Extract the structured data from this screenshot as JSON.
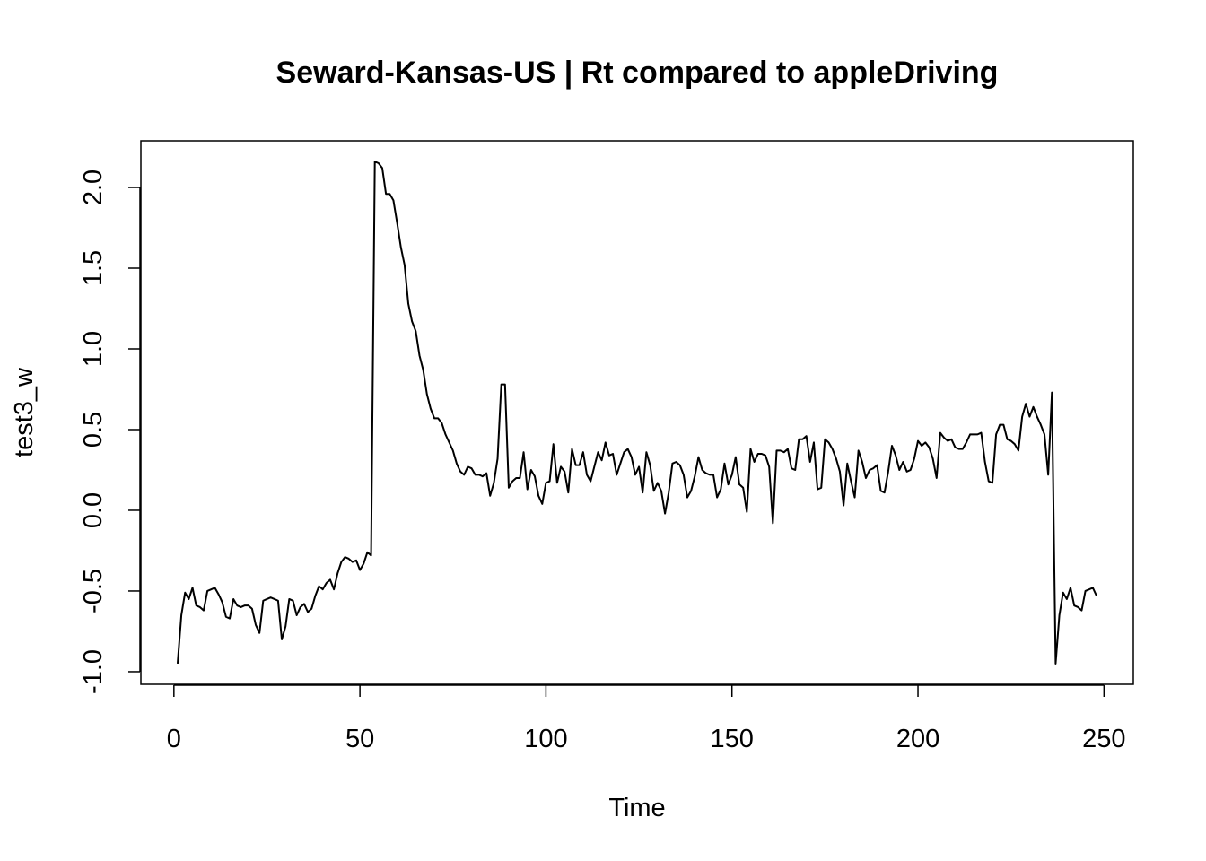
{
  "chart_data": {
    "type": "line",
    "title": "Seward-Kansas-US | Rt compared to appleDriving",
    "x_label": "Time",
    "y_label": "test3_w",
    "x": [
      1,
      2,
      3,
      4,
      5,
      6,
      7,
      8,
      9,
      10,
      11,
      12,
      13,
      14,
      15,
      16,
      17,
      18,
      19,
      20,
      21,
      22,
      23,
      24,
      25,
      26,
      27,
      28,
      29,
      30,
      31,
      32,
      33,
      34,
      35,
      36,
      37,
      38,
      39,
      40,
      41,
      42,
      43,
      44,
      45,
      46,
      47,
      48,
      49,
      50,
      51,
      52,
      53,
      54,
      55,
      56,
      57,
      58,
      59,
      60,
      61,
      62,
      63,
      64,
      65,
      66,
      67,
      68,
      69,
      70,
      71,
      72,
      73,
      74,
      75,
      76,
      77,
      78,
      79,
      80,
      81,
      82,
      83,
      84,
      85,
      86,
      87,
      88,
      89,
      90,
      91,
      92,
      93,
      94,
      95,
      96,
      97,
      98,
      99,
      100,
      101,
      102,
      103,
      104,
      105,
      106,
      107,
      108,
      109,
      110,
      111,
      112,
      113,
      114,
      115,
      116,
      117,
      118,
      119,
      120,
      121,
      122,
      123,
      124,
      125,
      126,
      127,
      128,
      129,
      130,
      131,
      132,
      133,
      134,
      135,
      136,
      137,
      138,
      139,
      140,
      141,
      142,
      143,
      144,
      145,
      146,
      147,
      148,
      149,
      150,
      151,
      152,
      153,
      154,
      155,
      156,
      157,
      158,
      159,
      160,
      161,
      162,
      163,
      164,
      165,
      166,
      167,
      168,
      169,
      170,
      171,
      172,
      173,
      174,
      175,
      176,
      177,
      178,
      179,
      180,
      181,
      182,
      183,
      184,
      185,
      186,
      187,
      188,
      189,
      190,
      191,
      192,
      193,
      194,
      195,
      196,
      197,
      198,
      199,
      200,
      201,
      202,
      203,
      204,
      205,
      206,
      207,
      208,
      209,
      210,
      211,
      212,
      213,
      214,
      215,
      216,
      217,
      218,
      219,
      220,
      221,
      222,
      223,
      224,
      225,
      226,
      227,
      228,
      229,
      230,
      231,
      232,
      233,
      234,
      235,
      236,
      237,
      238,
      239,
      240,
      241,
      242,
      243,
      244,
      245,
      246,
      247,
      248
    ],
    "series": [
      {
        "color": "#000000",
        "values": [
          -0.95,
          -0.65,
          -0.51,
          -0.55,
          -0.48,
          -0.59,
          -0.6,
          -0.62,
          -0.5,
          -0.49,
          -0.48,
          -0.52,
          -0.57,
          -0.66,
          -0.67,
          -0.55,
          -0.59,
          -0.6,
          -0.59,
          -0.59,
          -0.61,
          -0.71,
          -0.76,
          -0.56,
          -0.55,
          -0.54,
          -0.55,
          -0.56,
          -0.8,
          -0.72,
          -0.55,
          -0.56,
          -0.65,
          -0.6,
          -0.58,
          -0.63,
          -0.61,
          -0.53,
          -0.47,
          -0.49,
          -0.45,
          -0.43,
          -0.49,
          -0.39,
          -0.32,
          -0.29,
          -0.3,
          -0.32,
          -0.31,
          -0.37,
          -0.33,
          -0.26,
          -0.28,
          2.16,
          2.15,
          2.12,
          1.96,
          1.96,
          1.92,
          1.78,
          1.63,
          1.52,
          1.28,
          1.17,
          1.11,
          0.96,
          0.87,
          0.72,
          0.63,
          0.57,
          0.57,
          0.54,
          0.47,
          0.42,
          0.37,
          0.29,
          0.24,
          0.22,
          0.27,
          0.26,
          0.22,
          0.22,
          0.21,
          0.23,
          0.09,
          0.17,
          0.32,
          0.78,
          0.78,
          0.14,
          0.18,
          0.2,
          0.2,
          0.36,
          0.13,
          0.25,
          0.21,
          0.09,
          0.04,
          0.17,
          0.18,
          0.41,
          0.17,
          0.27,
          0.24,
          0.11,
          0.38,
          0.28,
          0.28,
          0.36,
          0.22,
          0.18,
          0.27,
          0.36,
          0.31,
          0.42,
          0.34,
          0.35,
          0.22,
          0.29,
          0.36,
          0.38,
          0.33,
          0.22,
          0.27,
          0.11,
          0.36,
          0.28,
          0.12,
          0.17,
          0.12,
          -0.02,
          0.11,
          0.29,
          0.3,
          0.28,
          0.22,
          0.08,
          0.12,
          0.21,
          0.33,
          0.25,
          0.23,
          0.22,
          0.22,
          0.08,
          0.13,
          0.29,
          0.16,
          0.22,
          0.33,
          0.16,
          0.14,
          -0.01,
          0.38,
          0.3,
          0.35,
          0.35,
          0.34,
          0.27,
          -0.08,
          0.37,
          0.37,
          0.36,
          0.38,
          0.26,
          0.25,
          0.44,
          0.44,
          0.46,
          0.3,
          0.42,
          0.13,
          0.14,
          0.44,
          0.42,
          0.38,
          0.32,
          0.24,
          0.03,
          0.29,
          0.18,
          0.08,
          0.37,
          0.3,
          0.2,
          0.25,
          0.26,
          0.28,
          0.12,
          0.11,
          0.24,
          0.4,
          0.34,
          0.25,
          0.3,
          0.24,
          0.25,
          0.32,
          0.43,
          0.4,
          0.42,
          0.39,
          0.32,
          0.2,
          0.48,
          0.45,
          0.43,
          0.44,
          0.39,
          0.38,
          0.38,
          0.42,
          0.47,
          0.47,
          0.47,
          0.48,
          0.3,
          0.18,
          0.17,
          0.47,
          0.53,
          0.53,
          0.44,
          0.43,
          0.41,
          0.37,
          0.58,
          0.66,
          0.58,
          0.64,
          0.58,
          0.53,
          0.47,
          0.22,
          0.73,
          -0.95,
          -0.65,
          -0.51,
          -0.55,
          -0.48,
          -0.59,
          -0.6,
          -0.62,
          -0.5,
          -0.49,
          -0.48,
          -0.53
        ]
      }
    ],
    "xlim": [
      -8.88,
      257.88
    ],
    "ylim": [
      -1.078,
      2.289
    ],
    "xticks": [
      0,
      50,
      100,
      150,
      200,
      250
    ],
    "yticks": [
      {
        "value": -1,
        "label": "-1.0"
      },
      -0.5,
      {
        "value": 0,
        "label": "0.0"
      },
      0.5,
      {
        "value": 1,
        "label": "1.0"
      },
      1.5,
      {
        "value": 2,
        "label": "2.0"
      }
    ]
  }
}
